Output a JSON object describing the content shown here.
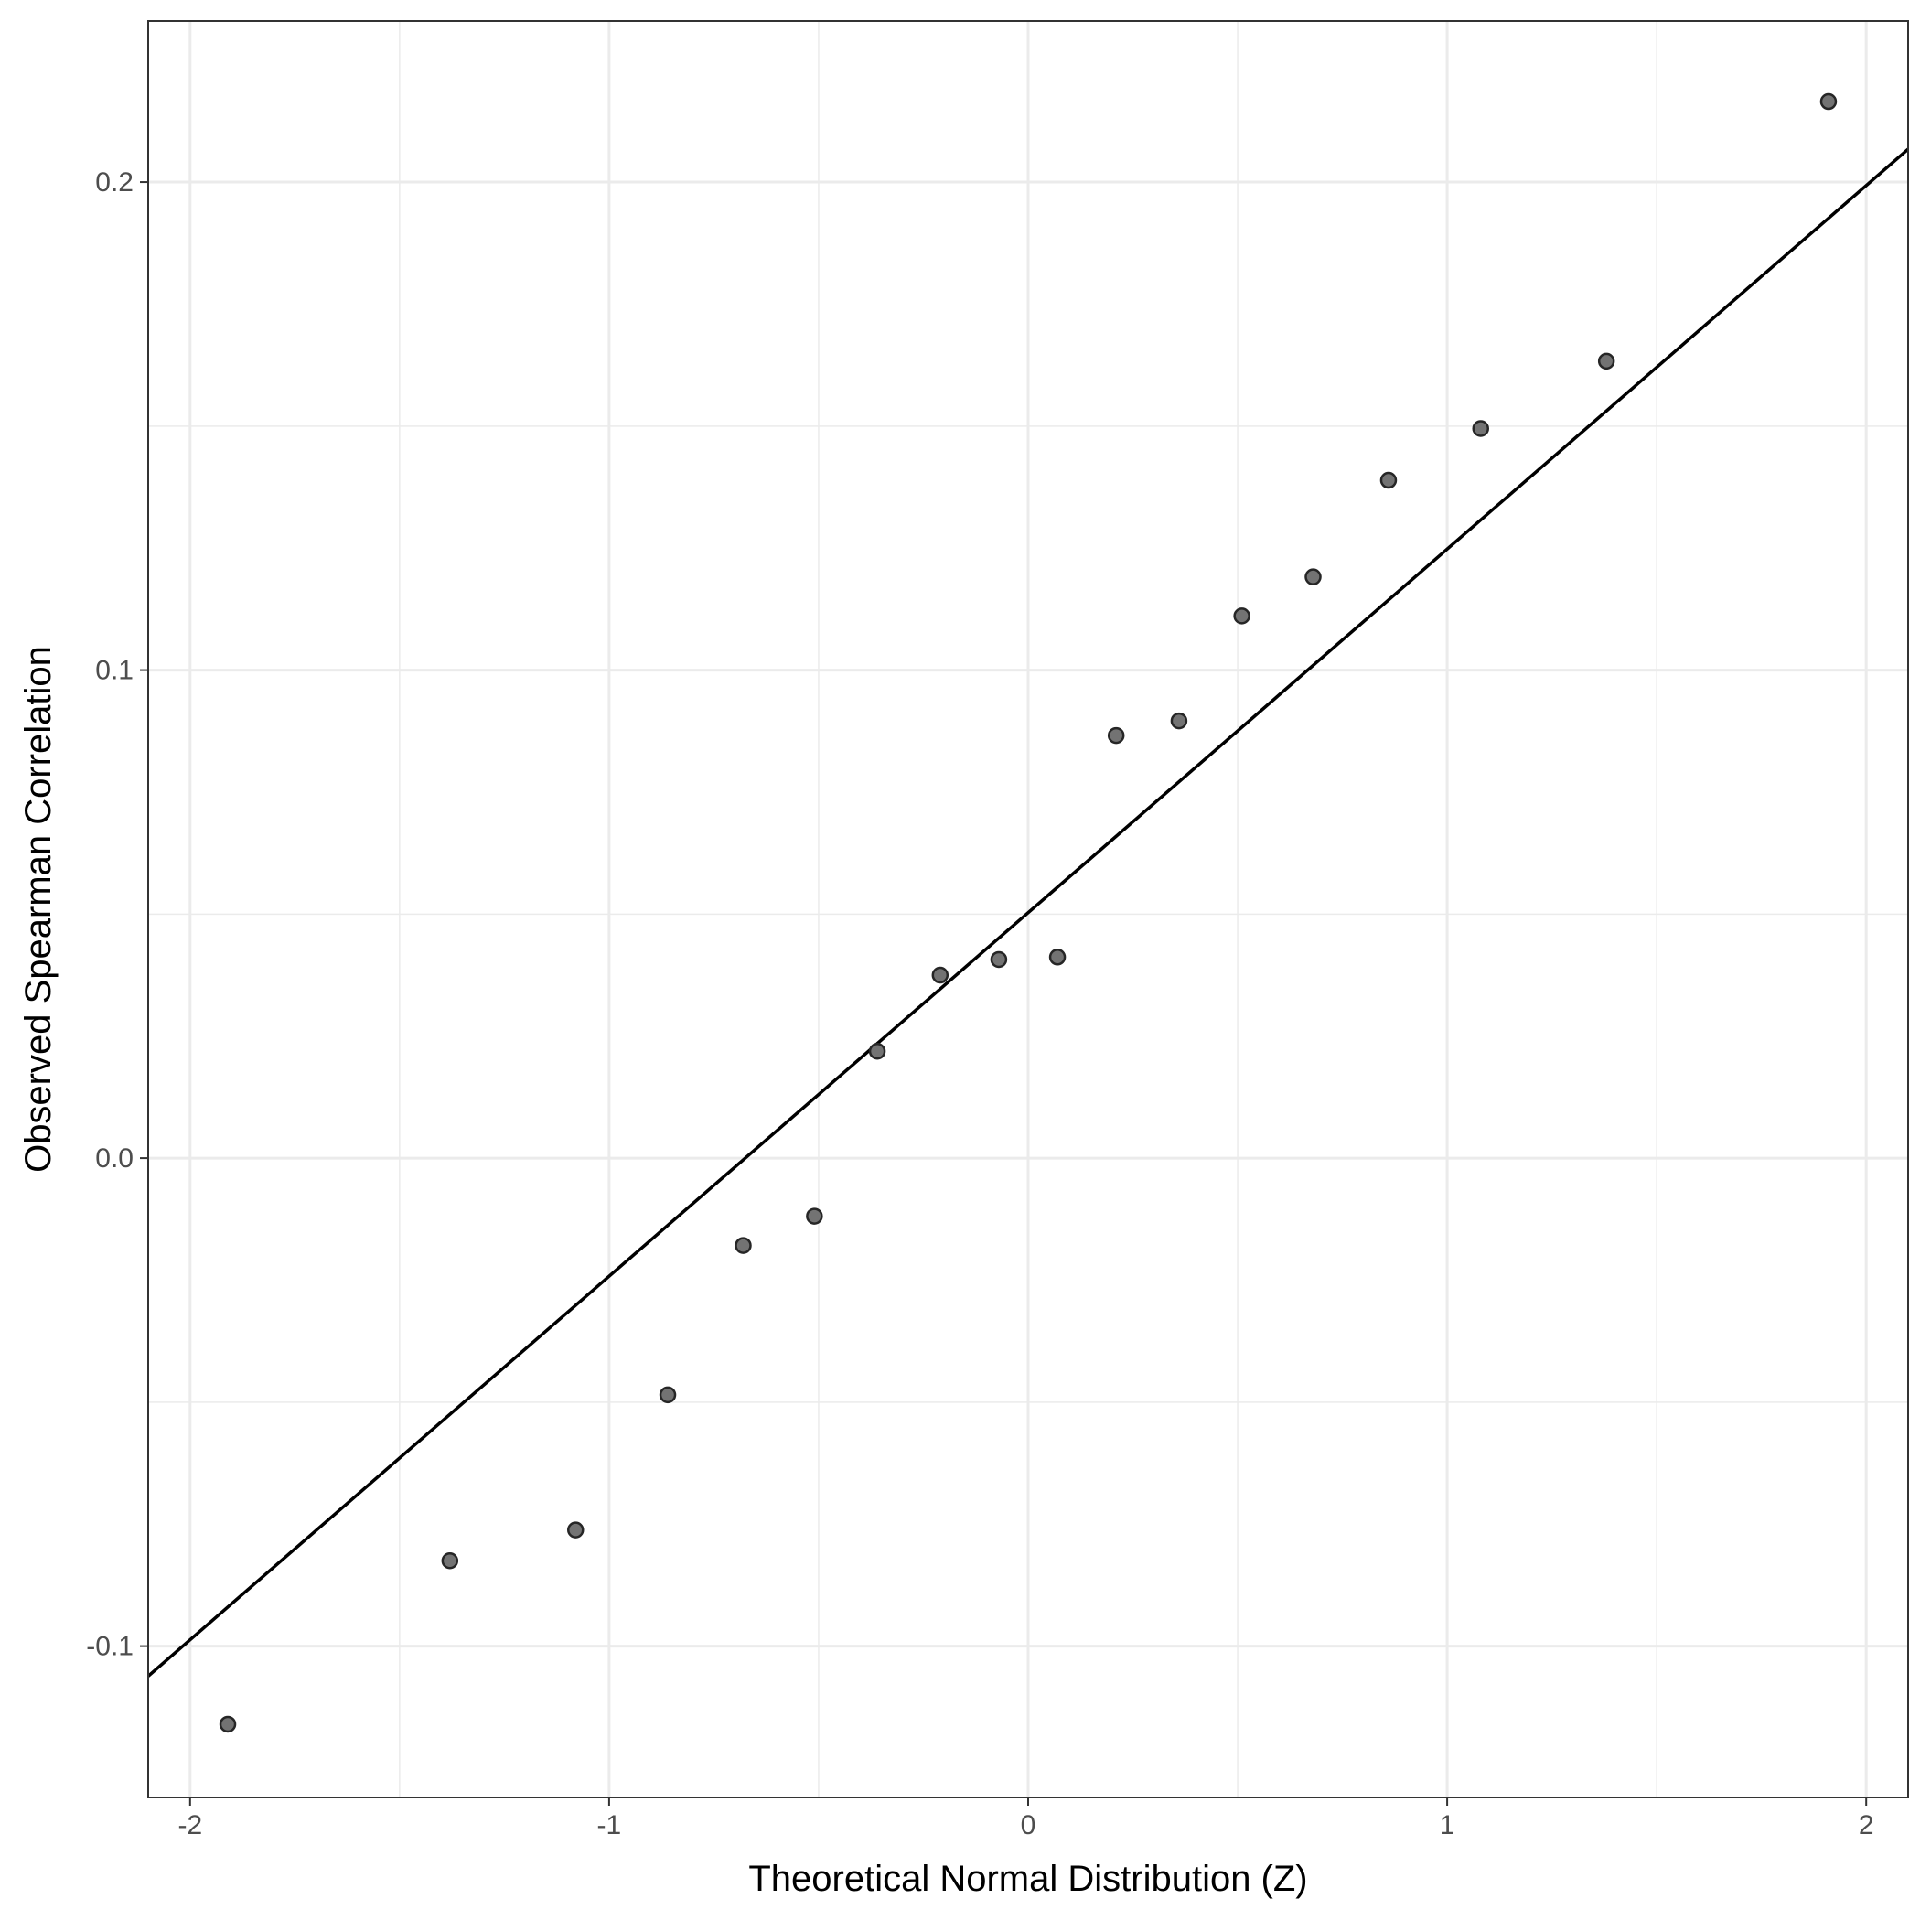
{
  "chart_data": {
    "type": "scatter",
    "title": "",
    "xlabel": "Theoretical Normal Distribution (Z)",
    "ylabel": "Observed Spearman Correlation",
    "xlim": [
      -2.1,
      2.1
    ],
    "ylim": [
      -0.131,
      0.233
    ],
    "x_ticks": [
      -2,
      -1,
      0,
      1,
      2
    ],
    "x_tick_labels": [
      "-2",
      "-1",
      "0",
      "1",
      "2"
    ],
    "x_minor_ticks": [
      -1.5,
      -0.5,
      0.5,
      1.5
    ],
    "y_ticks": [
      -0.1,
      0.0,
      0.1,
      0.2
    ],
    "y_tick_labels": [
      "-0.1",
      "0.0",
      "0.1",
      "0.2"
    ],
    "y_minor_ticks": [
      -0.05,
      0.05,
      0.15
    ],
    "grid": true,
    "legend": "none",
    "points": [
      {
        "x": -1.91,
        "y": -0.116
      },
      {
        "x": -1.38,
        "y": -0.0825
      },
      {
        "x": -1.08,
        "y": -0.0762
      },
      {
        "x": -0.86,
        "y": -0.0485
      },
      {
        "x": -0.68,
        "y": -0.0179
      },
      {
        "x": -0.51,
        "y": -0.0119
      },
      {
        "x": -0.36,
        "y": 0.0219
      },
      {
        "x": -0.21,
        "y": 0.0375
      },
      {
        "x": -0.07,
        "y": 0.0407
      },
      {
        "x": 0.07,
        "y": 0.0412
      },
      {
        "x": 0.21,
        "y": 0.0866
      },
      {
        "x": 0.36,
        "y": 0.0896
      },
      {
        "x": 0.51,
        "y": 0.1111
      },
      {
        "x": 0.68,
        "y": 0.1191
      },
      {
        "x": 0.86,
        "y": 0.1389
      },
      {
        "x": 1.08,
        "y": 0.1495
      },
      {
        "x": 1.38,
        "y": 0.1633
      },
      {
        "x": 1.91,
        "y": 0.2165
      }
    ],
    "reference_line": {
      "intercept": 0.0503,
      "slope": 0.0745
    },
    "colors": {
      "point_fill": "#737373",
      "point_stroke": "#262626",
      "line": "#000000",
      "grid": "#ebebeb",
      "panel_border": "#333333"
    }
  }
}
